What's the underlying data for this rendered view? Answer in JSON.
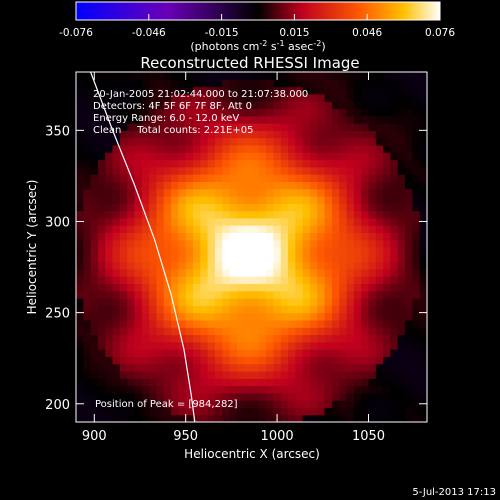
{
  "chart_data": {
    "type": "heatmap",
    "title": "Reconstructed RHESSI Image",
    "xlabel": "Heliocentric X (arcsec)",
    "ylabel": "Heliocentric Y (arcsec)",
    "xlim": [
      890,
      1082
    ],
    "ylim": [
      190,
      382
    ],
    "x_ticks": [
      900,
      950,
      1000,
      1050
    ],
    "y_ticks": [
      200,
      250,
      300,
      350
    ],
    "colorbar": {
      "range": [
        -0.076,
        0.076
      ],
      "ticks": [
        "-0.076",
        "-0.046",
        "-0.015",
        "0.015",
        "0.046",
        "0.076"
      ],
      "label_main": "(photons cm",
      "label_exp1": "-2",
      "label_mid1": " s",
      "label_exp2": "-1",
      "label_mid2": " asec",
      "label_exp3": "-2",
      "label_end": ")"
    },
    "annotations": [
      "20-Jan-2005 21:02:44.000 to 21:07:38.000",
      "Detectors: 4F 5F 6F 7F 8F, Att 0",
      "Energy Range: 6.0 - 12.0 keV",
      "Clean     Total counts: 2.21E+05"
    ],
    "peak_text": "Position of Peak = [984,282]",
    "peak": [
      984,
      282
    ],
    "peak_value": 0.076,
    "limb_curve": [
      [
        898,
        382
      ],
      [
        910,
        350
      ],
      [
        922,
        320
      ],
      [
        933,
        290
      ],
      [
        942,
        260
      ],
      [
        949,
        230
      ],
      [
        953,
        205
      ],
      [
        955,
        190
      ]
    ],
    "footer_date": "5-Jul-2013 17:13"
  }
}
